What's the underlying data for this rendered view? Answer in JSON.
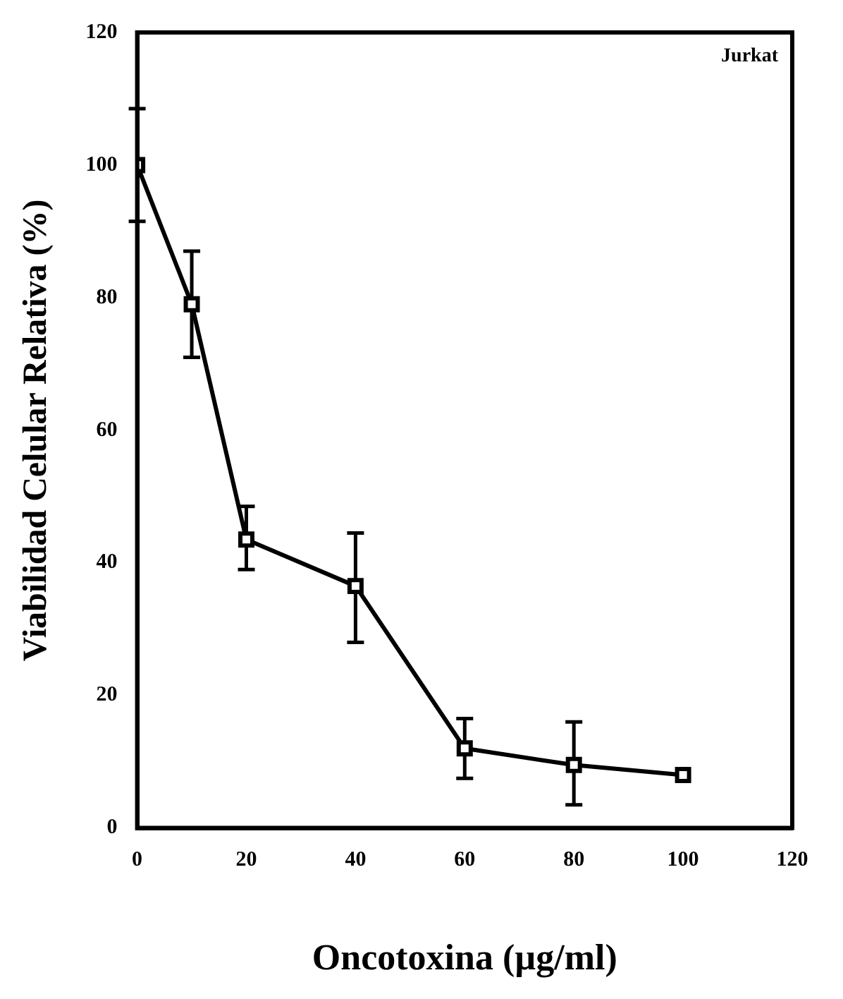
{
  "chart_data": {
    "type": "line",
    "xlabel": "Oncotoxina (µg/ml)",
    "ylabel": "Viabilidad Celular Relativa (%)",
    "annotations": [
      "Jurkat"
    ],
    "x": [
      0,
      10,
      20,
      40,
      60,
      80,
      100
    ],
    "series": [
      {
        "color": "#000000",
        "values": [
          100,
          79,
          43.5,
          36.5,
          12,
          9.5,
          8
        ],
        "errors": [
          [
            91.5,
            108.5
          ],
          [
            71,
            87
          ],
          [
            39,
            48.5
          ],
          [
            28,
            44.5
          ],
          [
            7.5,
            16.5
          ],
          [
            3.5,
            16
          ],
          null
        ]
      }
    ],
    "xlim": [
      0,
      120
    ],
    "xticks": [
      0,
      20,
      40,
      60,
      80,
      100,
      120
    ],
    "ylim": [
      0,
      120
    ],
    "yticks": [
      0,
      20,
      40,
      60,
      80,
      100,
      120
    ],
    "grid": false,
    "legend": false,
    "marker": "square",
    "line_style": "solid"
  }
}
